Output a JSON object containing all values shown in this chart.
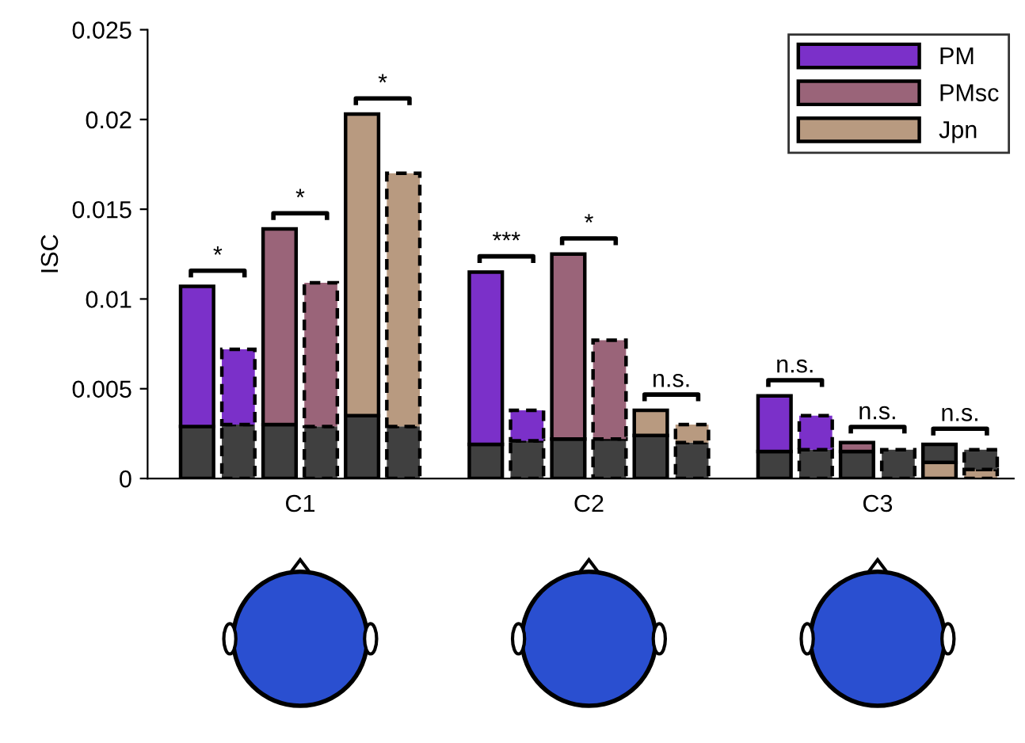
{
  "chart_data": {
    "type": "bar",
    "stacked": true,
    "ylabel": "ISC",
    "categories": [
      null,
      null,
      null,
      null,
      null,
      null,
      null,
      null,
      null,
      null,
      null,
      null,
      null,
      null,
      null,
      null,
      null,
      null
    ],
    "ylim": [
      0,
      0.025
    ],
    "yticks": [
      0,
      0.005,
      0.01,
      0.015,
      0.02,
      0.025
    ],
    "grid": false,
    "legend": "top right",
    "series": [
      {
        "color": "#404040",
        "values": [
          0.0029,
          null,
          0.003,
          null,
          0.0035,
          null,
          0.0019,
          null,
          0.0022,
          null,
          0.0024,
          null,
          0.0015,
          null,
          0.0015,
          null,
          null,
          null
        ],
        "line_style": "solid"
      },
      {
        "color": "#404040",
        "values": [
          null,
          0.003,
          null,
          0.0029,
          null,
          0.0029,
          null,
          0.0021,
          null,
          0.0022,
          null,
          0.002,
          null,
          0.0016,
          null,
          0.0016,
          null,
          null
        ],
        "line_style": "dashed"
      },
      {
        "name": "PM",
        "color": "#7b30c9",
        "values": [
          0.0078,
          null,
          null,
          null,
          null,
          null,
          0.0096,
          null,
          null,
          null,
          null,
          null,
          0.0031,
          null,
          null,
          null,
          null,
          null
        ],
        "line_style": "solid"
      },
      {
        "color": "#7b30c9",
        "values": [
          null,
          0.0042,
          null,
          null,
          null,
          null,
          null,
          0.0017,
          null,
          null,
          null,
          null,
          null,
          0.0019,
          null,
          null,
          null,
          null
        ],
        "line_style": "dashed"
      },
      {
        "name": "PMsc",
        "color": "#9a6479",
        "values": [
          null,
          null,
          0.0109,
          null,
          null,
          null,
          null,
          null,
          0.0103,
          null,
          null,
          null,
          null,
          null,
          0.0005,
          null,
          null,
          null
        ],
        "line_style": "solid"
      },
      {
        "color": "#9a6479",
        "values": [
          null,
          null,
          null,
          0.008,
          null,
          null,
          null,
          null,
          null,
          0.0055,
          null,
          null,
          null,
          null,
          null,
          null,
          null,
          null
        ],
        "line_style": "dashed"
      },
      {
        "name": "Jpn",
        "color": "#b89a80",
        "values": [
          null,
          null,
          null,
          null,
          0.0168,
          null,
          null,
          null,
          null,
          null,
          0.0014,
          null,
          null,
          null,
          null,
          null,
          0.0009,
          null
        ],
        "line_style": "solid"
      },
      {
        "color": "#b89a80",
        "values": [
          null,
          null,
          null,
          null,
          null,
          0.0141,
          null,
          null,
          null,
          null,
          null,
          0.001,
          null,
          null,
          null,
          null,
          null,
          0.0005
        ],
        "line_style": "dashed"
      },
      {
        "color": "#404040",
        "values": [
          null,
          null,
          null,
          null,
          null,
          null,
          null,
          null,
          null,
          null,
          null,
          null,
          null,
          null,
          null,
          null,
          0.001,
          null
        ],
        "line_style": "solid"
      },
      {
        "color": "#404040",
        "values": [
          null,
          null,
          null,
          null,
          null,
          null,
          null,
          null,
          null,
          null,
          null,
          null,
          null,
          null,
          null,
          null,
          null,
          0.0011
        ],
        "line_style": "dashed"
      }
    ],
    "annotations": [
      "*",
      "*",
      "*",
      "***",
      "*",
      "n.s.",
      "n.s.",
      "n.s.",
      "n.s.",
      "C1",
      "C2",
      "C3"
    ]
  }
}
